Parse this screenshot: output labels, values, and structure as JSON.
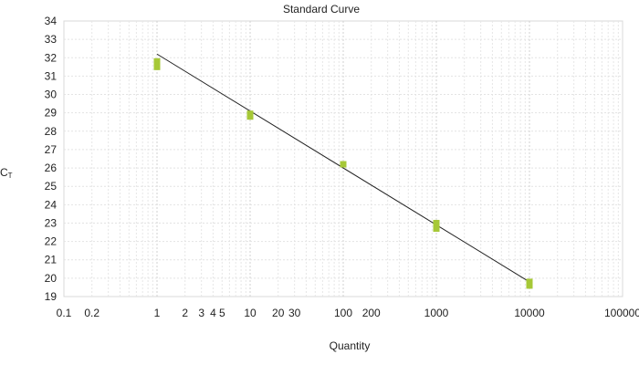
{
  "chart_data": {
    "type": "scatter",
    "title": "Standard Curve",
    "xlabel": "Quantity",
    "ylabel_main": "C",
    "ylabel_sub": "T",
    "x_scale": "log",
    "xlim": [
      0.1,
      100000
    ],
    "ylim": [
      19,
      34
    ],
    "x_ticks": [
      {
        "value": 0.1,
        "label": "0.1"
      },
      {
        "value": 0.2,
        "label": "0.2"
      },
      {
        "value": 1,
        "label": "1"
      },
      {
        "value": 2,
        "label": "2"
      },
      {
        "value": 3,
        "label": "3"
      },
      {
        "value": 4,
        "label": "4"
      },
      {
        "value": 5,
        "label": "5"
      },
      {
        "value": 10,
        "label": "10"
      },
      {
        "value": 20,
        "label": "20"
      },
      {
        "value": 30,
        "label": "30"
      },
      {
        "value": 100,
        "label": "100"
      },
      {
        "value": 200,
        "label": "200"
      },
      {
        "value": 1000,
        "label": "1000"
      },
      {
        "value": 10000,
        "label": "10000"
      },
      {
        "value": 100000,
        "label": "100000"
      }
    ],
    "y_ticks": [
      19,
      20,
      21,
      22,
      23,
      24,
      25,
      26,
      27,
      28,
      29,
      30,
      31,
      32,
      33,
      34
    ],
    "grid": true,
    "points": [
      {
        "x": 1,
        "y": 31.5
      },
      {
        "x": 1,
        "y": 31.8
      },
      {
        "x": 10,
        "y": 28.8
      },
      {
        "x": 10,
        "y": 28.95
      },
      {
        "x": 100,
        "y": 26.2
      },
      {
        "x": 1000,
        "y": 22.7
      },
      {
        "x": 1000,
        "y": 23.0
      },
      {
        "x": 10000,
        "y": 19.6
      },
      {
        "x": 10000,
        "y": 19.8
      }
    ],
    "fit_line": {
      "x": [
        1,
        10000
      ],
      "y": [
        32.2,
        19.8
      ]
    },
    "marker_color": "#a6c837",
    "line_color": "#222222"
  }
}
